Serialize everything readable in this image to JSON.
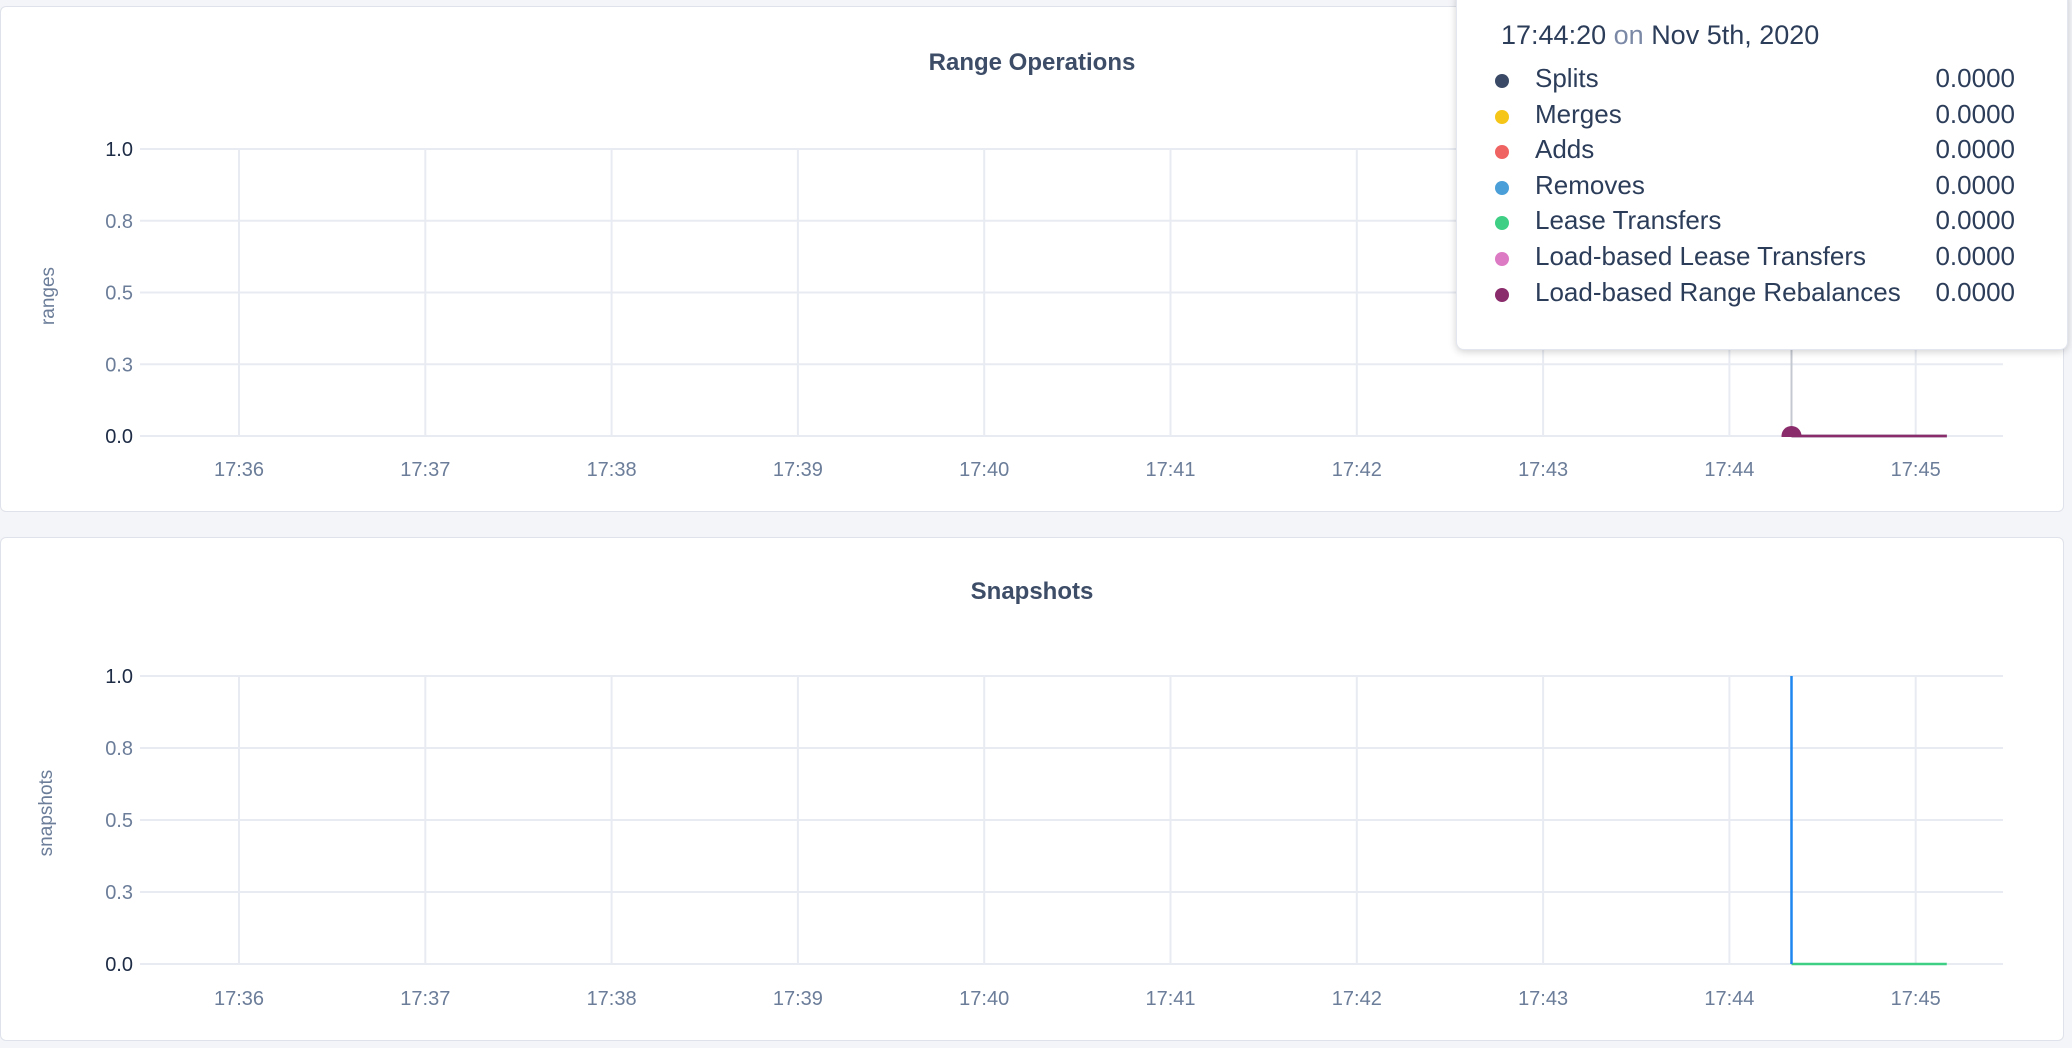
{
  "chart_data": [
    {
      "type": "line",
      "title": "Range Operations",
      "ylabel": "ranges",
      "ylim": [
        0,
        1
      ],
      "y_ticks": [
        {
          "value": 1.0,
          "label": "1.0"
        },
        {
          "value": 0.75,
          "label": "0.8"
        },
        {
          "value": 0.5,
          "label": "0.5"
        },
        {
          "value": 0.25,
          "label": "0.3"
        },
        {
          "value": 0.0,
          "label": "0.0"
        }
      ],
      "x_ticks": [
        "17:36",
        "17:37",
        "17:38",
        "17:39",
        "17:40",
        "17:41",
        "17:42",
        "17:43",
        "17:44",
        "17:45"
      ],
      "grid": true,
      "series": [
        {
          "name": "Splits",
          "color": "#3a4a66",
          "points": [
            [
              "17:44:20",
              0
            ],
            [
              "17:45:10",
              0
            ]
          ]
        },
        {
          "name": "Merges",
          "color": "#f5c518",
          "points": [
            [
              "17:44:20",
              0
            ],
            [
              "17:45:10",
              0
            ]
          ]
        },
        {
          "name": "Adds",
          "color": "#f06363",
          "points": [
            [
              "17:44:20",
              0
            ],
            [
              "17:45:10",
              0
            ]
          ]
        },
        {
          "name": "Removes",
          "color": "#4a9fd8",
          "points": [
            [
              "17:44:20",
              0
            ],
            [
              "17:45:10",
              0
            ]
          ]
        },
        {
          "name": "Lease Transfers",
          "color": "#3ecf85",
          "points": [
            [
              "17:44:20",
              0
            ],
            [
              "17:45:10",
              0
            ]
          ]
        },
        {
          "name": "Load-based Lease Transfers",
          "color": "#dd7ac4",
          "points": [
            [
              "17:44:20",
              0
            ],
            [
              "17:45:10",
              0
            ]
          ]
        },
        {
          "name": "Load-based Range Rebalances",
          "color": "#8a2b6b",
          "points": [
            [
              "17:44:20",
              0
            ],
            [
              "17:45:10",
              0
            ]
          ]
        }
      ],
      "hover_time": "17:44:20"
    },
    {
      "type": "line",
      "title": "Snapshots",
      "ylabel": "snapshots",
      "ylim": [
        0,
        1
      ],
      "y_ticks": [
        {
          "value": 1.0,
          "label": "1.0"
        },
        {
          "value": 0.75,
          "label": "0.8"
        },
        {
          "value": 0.5,
          "label": "0.5"
        },
        {
          "value": 0.25,
          "label": "0.3"
        },
        {
          "value": 0.0,
          "label": "0.0"
        }
      ],
      "x_ticks": [
        "17:36",
        "17:37",
        "17:38",
        "17:39",
        "17:40",
        "17:41",
        "17:42",
        "17:43",
        "17:44",
        "17:45"
      ],
      "grid": true,
      "series": [
        {
          "color": "#3ecf85",
          "points": [
            [
              "17:44:20",
              0
            ],
            [
              "17:45:10",
              0
            ]
          ]
        },
        {
          "color": "#1f86f0",
          "points": [
            [
              "17:44:20",
              1
            ],
            [
              "17:44:20",
              0
            ]
          ]
        }
      ]
    }
  ],
  "tooltip": {
    "time": "17:44:20",
    "on": "on",
    "date": "Nov 5th, 2020",
    "rows": [
      {
        "label": "Splits",
        "value": "0.0000",
        "color": "#3a4a66"
      },
      {
        "label": "Merges",
        "value": "0.0000",
        "color": "#f5c518"
      },
      {
        "label": "Adds",
        "value": "0.0000",
        "color": "#f06363"
      },
      {
        "label": "Removes",
        "value": "0.0000",
        "color": "#4a9fd8"
      },
      {
        "label": "Lease Transfers",
        "value": "0.0000",
        "color": "#3ecf85"
      },
      {
        "label": "Load-based Lease Transfers",
        "value": "0.0000",
        "color": "#dd7ac4"
      },
      {
        "label": "Load-based Range Rebalances",
        "value": "0.0000",
        "color": "#8a2b6b"
      }
    ]
  }
}
